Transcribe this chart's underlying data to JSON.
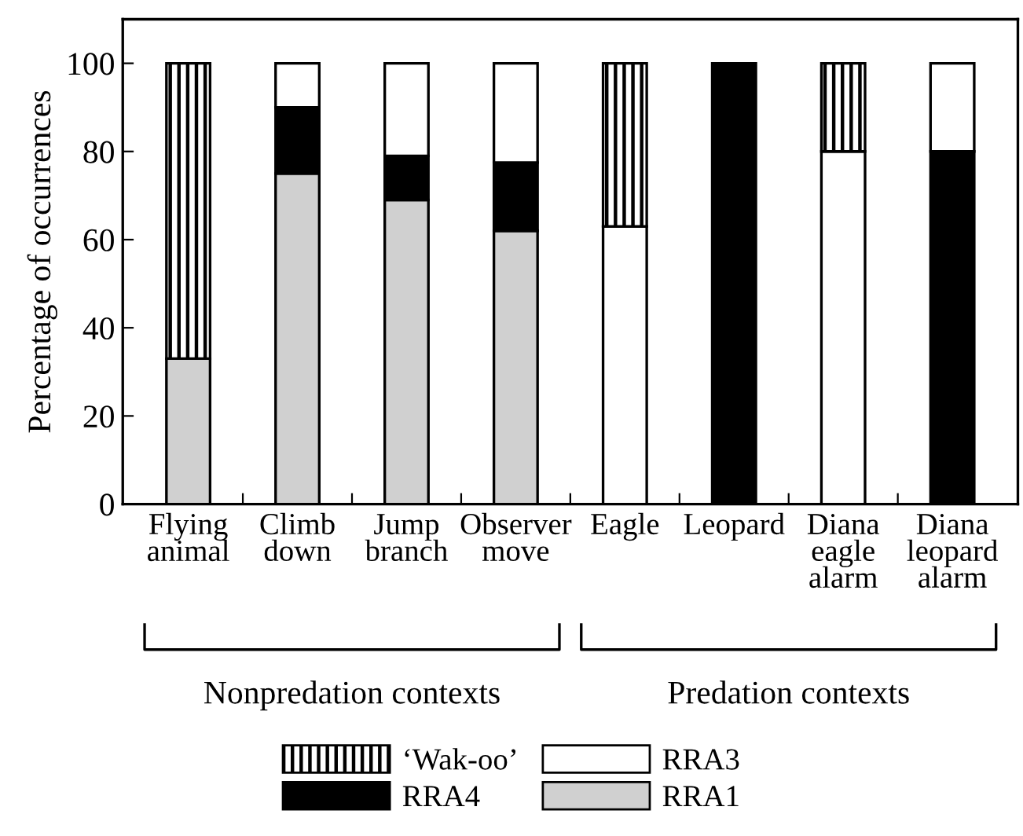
{
  "chart_data": {
    "type": "bar",
    "stacked": true,
    "ylabel": "Percentage of occurrences",
    "categories": [
      "Flying\nanimal",
      "Climb\ndown",
      "Jump\nbranch",
      "Observer\nmove",
      "Eagle",
      "Leopard",
      "Diana\neagle\nalarm",
      "Diana\nleopard\nalarm"
    ],
    "series": [
      {
        "name": "RRA1",
        "color": "#d0d0d0",
        "values": [
          33,
          75,
          69,
          62,
          0,
          0,
          0,
          0
        ]
      },
      {
        "name": "RRA4",
        "color": "#000000",
        "values": [
          0,
          15,
          10,
          15.5,
          0,
          100,
          0,
          80
        ]
      },
      {
        "name": "RRA3",
        "color": "#ffffff",
        "values": [
          0,
          10,
          21,
          22.5,
          63,
          0,
          80,
          20
        ]
      },
      {
        "name": "‘Wak-oo’",
        "color": "#000000",
        "values": [
          67,
          0,
          0,
          0,
          37,
          0,
          20,
          0
        ]
      }
    ],
    "ylim": [
      0,
      110
    ],
    "yticks": [
      0,
      20,
      40,
      60,
      80,
      100
    ],
    "grid": false,
    "legend": "bottom",
    "annotations": [
      "Nonpredation contexts",
      "Predation contexts"
    ]
  }
}
